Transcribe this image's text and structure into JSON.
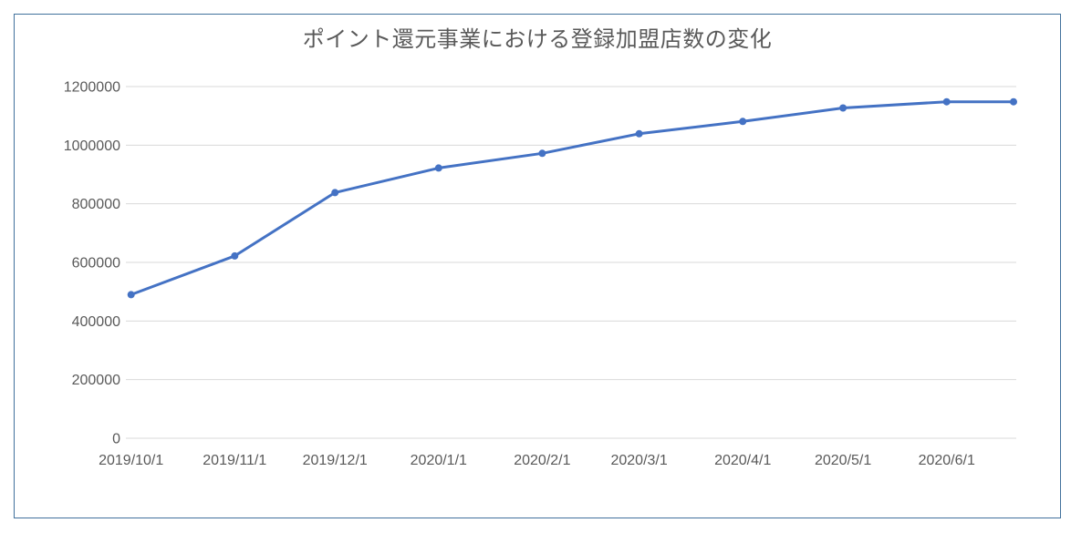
{
  "chart": {
    "colors": {
      "line": "#4472C4",
      "marker": "#4472C4",
      "gridline": "#D9D9D9",
      "axis_text": "#595959",
      "title_text": "#595959",
      "frame_border": "#41719C",
      "background": "#FFFFFF"
    }
  },
  "chart_data": {
    "type": "line",
    "title": "ポイント還元事業における登録加盟店数の変化",
    "xlabel": "",
    "ylabel": "",
    "axis_type": "date",
    "x": [
      "2019/10/1",
      "2019/11/1",
      "2019/12/1",
      "2020/1/1",
      "2020/2/1",
      "2020/3/1",
      "2020/4/1",
      "2020/5/1",
      "2020/6/1",
      "2020/6/21"
    ],
    "values": [
      490000,
      622000,
      838000,
      922000,
      972000,
      1039000,
      1081000,
      1127000,
      1148000,
      1148000
    ],
    "series_name": "登録加盟店数",
    "x_tick_labels": [
      "2019/10/1",
      "2019/11/1",
      "2019/12/1",
      "2020/1/1",
      "2020/2/1",
      "2020/3/1",
      "2020/4/1",
      "2020/5/1",
      "2020/6/1"
    ],
    "y_ticks": [
      0,
      200000,
      400000,
      600000,
      800000,
      1000000,
      1200000
    ],
    "y_tick_labels": [
      "0",
      "200000",
      "400000",
      "600000",
      "800000",
      "1000000",
      "1200000"
    ],
    "ylim": [
      0,
      1200000
    ],
    "grid": "horizontal",
    "legend": "none",
    "marker": "circle"
  }
}
